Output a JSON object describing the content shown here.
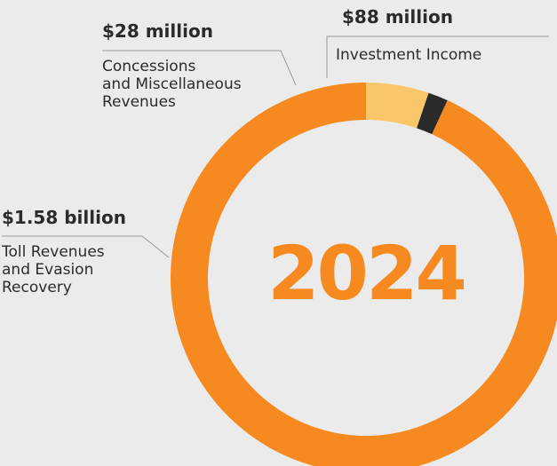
{
  "chart_data": {
    "type": "pie",
    "center_label": "2024",
    "series": [
      {
        "value": 1580,
        "value_label": "$1.58 billion",
        "category": [
          "Toll Revenues",
          "and Evasion",
          "Recovery"
        ],
        "color": "#f6891f"
      },
      {
        "value": 28,
        "value_label": "$28 million",
        "category": [
          "Concessions",
          "and Miscellaneous",
          "Revenues"
        ],
        "color": "#2a2a2a"
      },
      {
        "value": 88,
        "value_label": "$88 million",
        "category": [
          "Investment Income"
        ],
        "color": "#f9c66a"
      }
    ],
    "units": "USD millions",
    "start_angle": 0,
    "direction": "counterclockwise",
    "background": "#ebebeb",
    "center_color": "#f6891f"
  }
}
